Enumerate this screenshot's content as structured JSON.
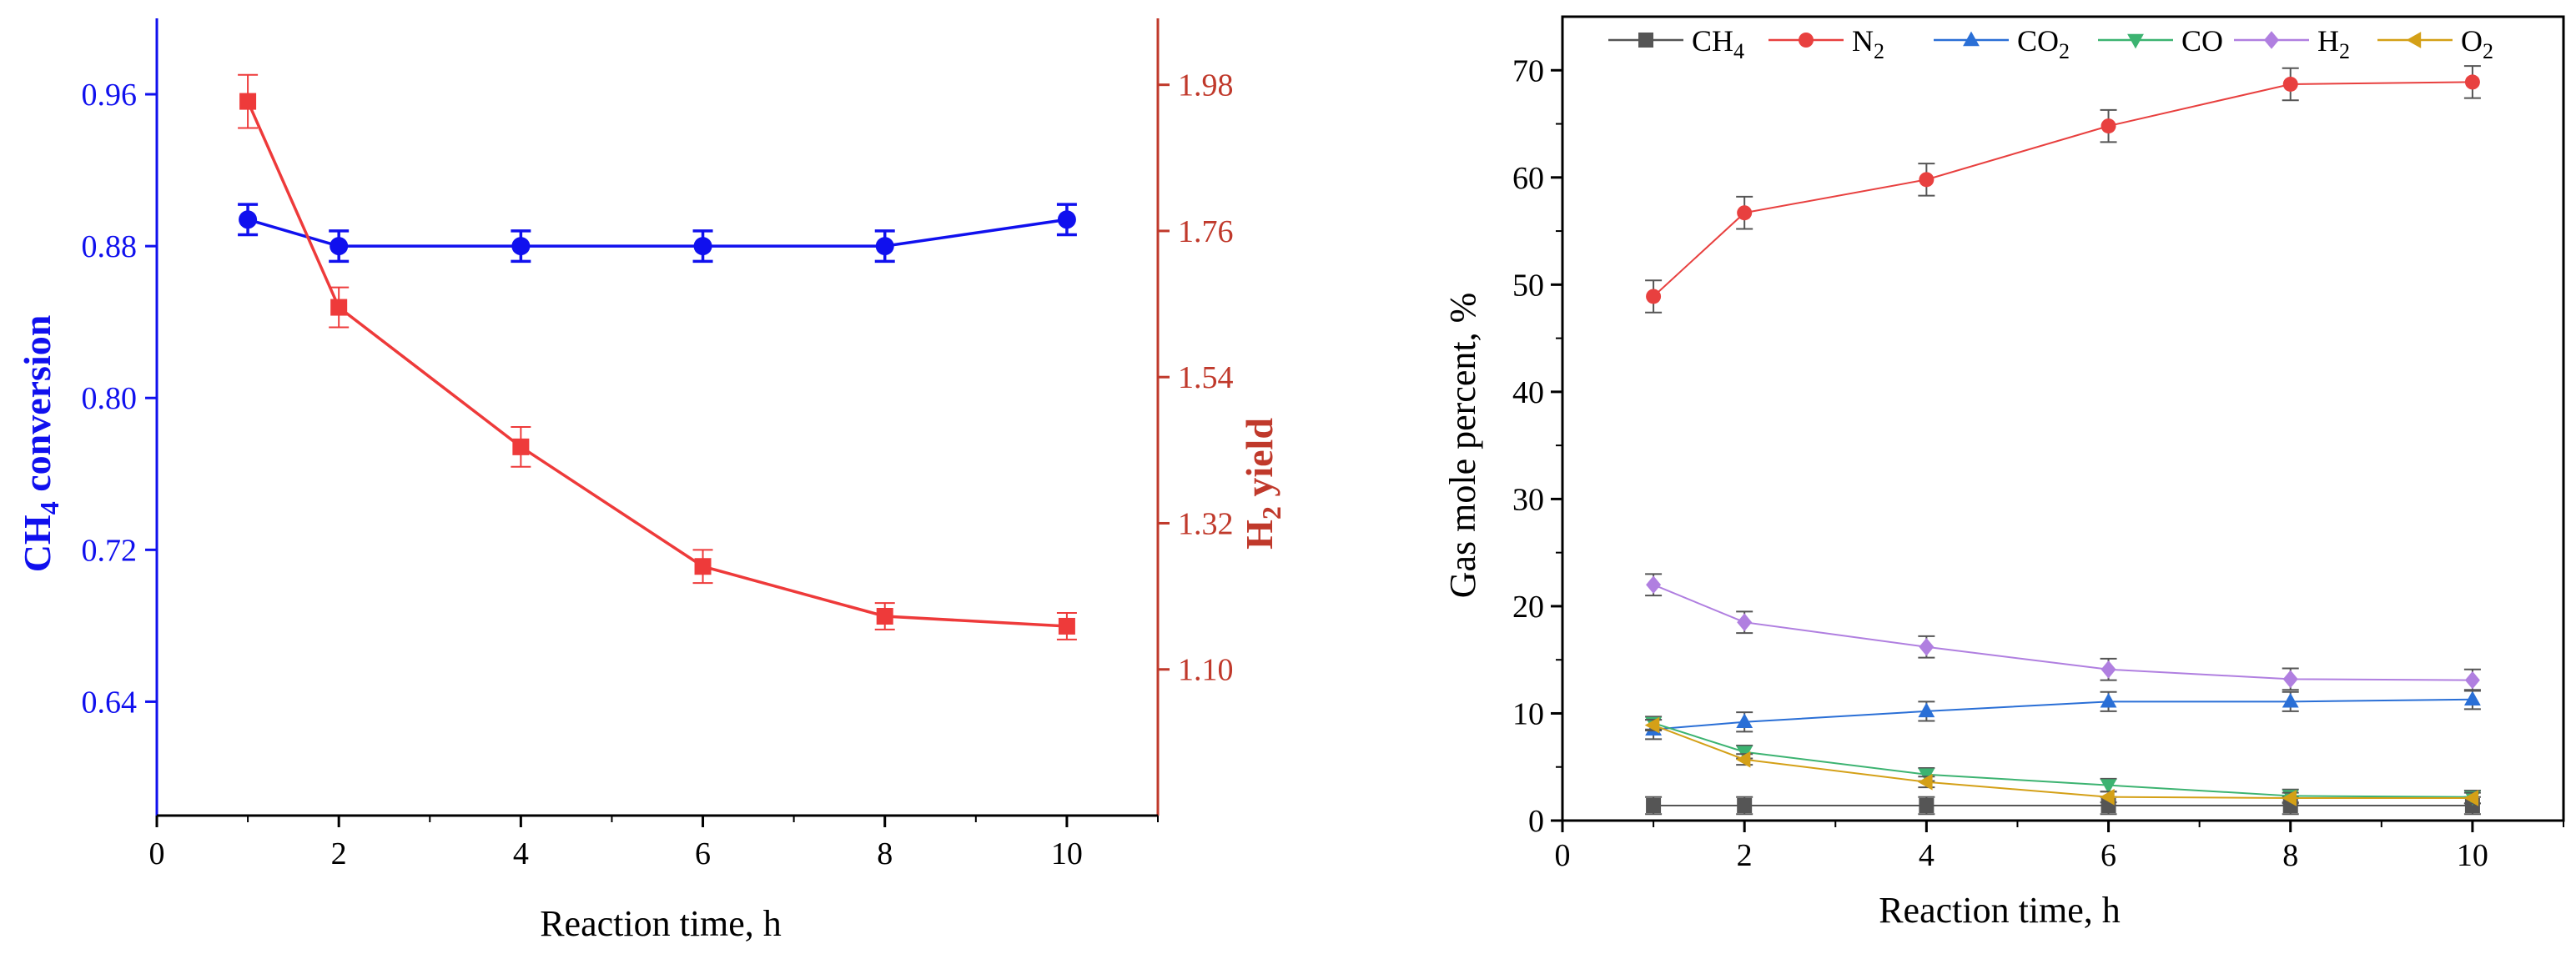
{
  "colors": {
    "ch4": "#555555",
    "n2": "#e8403f",
    "co2": "#2a6fd6",
    "co": "#3cb371",
    "h2": "#b07fe0",
    "o2": "#d4a017",
    "conversion": "#1010ee",
    "yield": "#ee3a3a",
    "yield_axis": "#c0392b",
    "axis": "#000000"
  },
  "chart_data": [
    {
      "type": "line",
      "xlabel": "Reaction time, h",
      "x_ticks": [
        0,
        2,
        4,
        6,
        8,
        10
      ],
      "xlim": [
        0,
        11
      ],
      "left_axis": {
        "label": "CH",
        "label_sub": "4",
        "label_rest": " conversion",
        "ylim": [
          0.58,
          1.0
        ],
        "ticks": [
          "0.64",
          "0.72",
          "0.80",
          "0.88",
          "0.96"
        ]
      },
      "right_axis": {
        "label": "H",
        "label_sub": "2",
        "label_rest": " yield",
        "ylim": [
          0.88,
          2.08
        ],
        "ticks": [
          "1.10",
          "1.32",
          "1.54",
          "1.76",
          "1.98"
        ]
      },
      "series": [
        {
          "name": "CH4 conversion",
          "axis": "left",
          "marker": "circle",
          "x": [
            1,
            2,
            4,
            6,
            8,
            10
          ],
          "values": [
            0.894,
            0.88,
            0.88,
            0.88,
            0.88,
            0.894
          ],
          "errors": [
            0.008,
            0.008,
            0.008,
            0.008,
            0.008,
            0.008
          ]
        },
        {
          "name": "H2 yield",
          "axis": "right",
          "marker": "square",
          "x": [
            1,
            2,
            4,
            6,
            8,
            10
          ],
          "values": [
            1.955,
            1.645,
            1.435,
            1.255,
            1.18,
            1.165
          ],
          "errors": [
            0.04,
            0.03,
            0.03,
            0.025,
            0.02,
            0.02
          ]
        }
      ]
    },
    {
      "type": "line",
      "xlabel": "Reaction time, h",
      "ylabel": "Gas mole percent, %",
      "x_ticks": [
        0,
        2,
        4,
        6,
        8,
        10
      ],
      "xlim": [
        0,
        11
      ],
      "ylim": [
        0,
        75
      ],
      "y_ticks": [
        0,
        10,
        20,
        30,
        40,
        50,
        60,
        70
      ],
      "legend_position": "top",
      "series": [
        {
          "name": "CH4",
          "label": "CH",
          "sub": "4",
          "marker": "square",
          "color_key": "ch4",
          "x": [
            1,
            2,
            4,
            6,
            8,
            10
          ],
          "values": [
            1.4,
            1.4,
            1.4,
            1.4,
            1.4,
            1.4
          ],
          "errors": [
            0.8,
            0.8,
            0.8,
            0.8,
            0.8,
            0.8
          ]
        },
        {
          "name": "N2",
          "label": "N",
          "sub": "2",
          "marker": "circle",
          "color_key": "n2",
          "x": [
            1,
            2,
            4,
            6,
            8,
            10
          ],
          "values": [
            48.9,
            56.7,
            59.8,
            64.8,
            68.7,
            68.9
          ],
          "errors": [
            1.5,
            1.5,
            1.5,
            1.5,
            1.5,
            1.5
          ]
        },
        {
          "name": "CO2",
          "label": "CO",
          "sub": "2",
          "marker": "triangle-up",
          "color_key": "co2",
          "x": [
            1,
            2,
            4,
            6,
            8,
            10
          ],
          "values": [
            8.5,
            9.2,
            10.2,
            11.1,
            11.1,
            11.3
          ],
          "errors": [
            0.9,
            0.9,
            0.9,
            0.9,
            0.9,
            0.9
          ]
        },
        {
          "name": "CO",
          "label": "CO",
          "sub": "",
          "marker": "triangle-down",
          "color_key": "co",
          "x": [
            1,
            2,
            4,
            6,
            8,
            10
          ],
          "values": [
            9.1,
            6.4,
            4.3,
            3.3,
            2.3,
            2.2
          ],
          "errors": [
            0.6,
            0.6,
            0.6,
            0.6,
            0.6,
            0.6
          ]
        },
        {
          "name": "H2",
          "label": "H",
          "sub": "2",
          "marker": "diamond",
          "color_key": "h2",
          "x": [
            1,
            2,
            4,
            6,
            8,
            10
          ],
          "values": [
            22.0,
            18.5,
            16.2,
            14.1,
            13.2,
            13.1
          ],
          "errors": [
            1.0,
            1.0,
            1.0,
            1.0,
            1.0,
            1.0
          ]
        },
        {
          "name": "O2",
          "label": "O",
          "sub": "2",
          "marker": "triangle-left",
          "color_key": "o2",
          "x": [
            1,
            2,
            4,
            6,
            8,
            10
          ],
          "values": [
            8.9,
            5.7,
            3.6,
            2.2,
            2.1,
            2.1
          ],
          "errors": [
            0.5,
            0.5,
            0.5,
            0.5,
            0.5,
            0.5
          ]
        }
      ]
    }
  ]
}
